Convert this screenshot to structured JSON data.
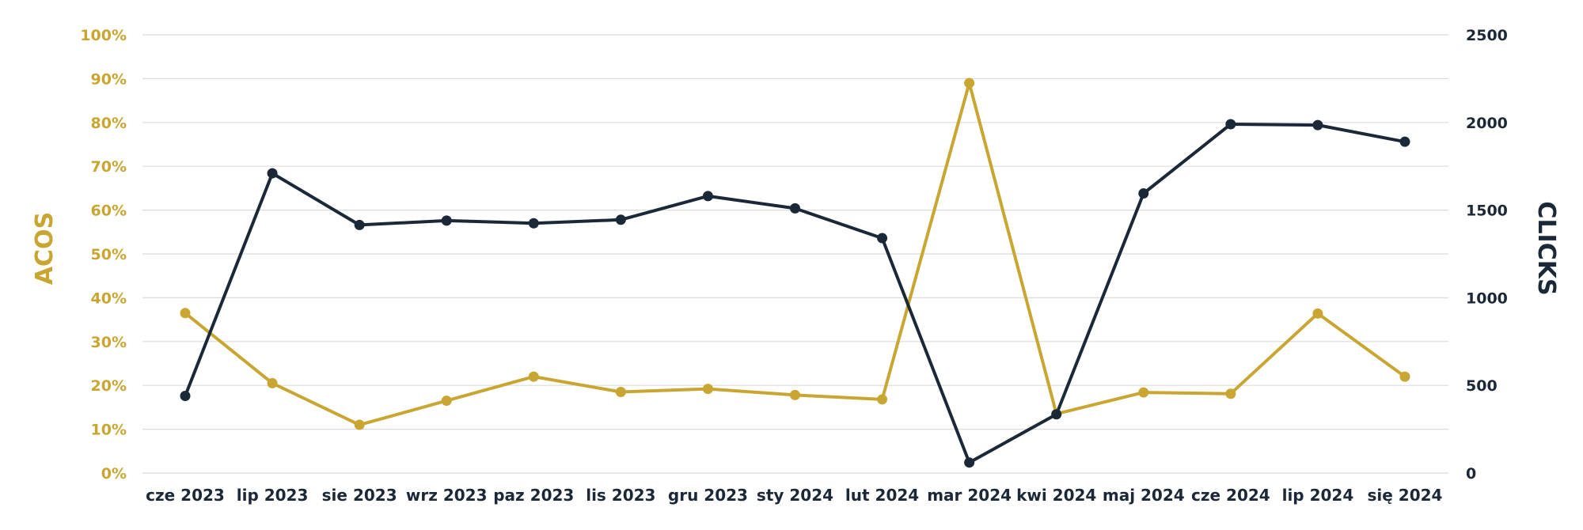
{
  "chart_data": {
    "type": "line",
    "categories": [
      "cze 2023",
      "lip 2023",
      "sie 2023",
      "wrz 2023",
      "paz 2023",
      "lis 2023",
      "gru 2023",
      "sty 2024",
      "lut 2024",
      "mar 2024",
      "kwi 2024",
      "maj 2024",
      "cze 2024",
      "lip 2024",
      "się 2024"
    ],
    "series": [
      {
        "name": "ACOS",
        "axis": "left",
        "color": "#c9a632",
        "values": [
          36.5,
          20.5,
          11,
          16.5,
          22,
          18.5,
          19.2,
          17.8,
          16.8,
          89,
          13.5,
          18.4,
          18.1,
          36.4,
          22
        ]
      },
      {
        "name": "CLICKS",
        "axis": "right",
        "color": "#1b2838",
        "values": [
          440,
          1710,
          1415,
          1440,
          1425,
          1445,
          1580,
          1510,
          1340,
          60,
          335,
          1595,
          1990,
          1985,
          1890
        ]
      }
    ],
    "ylabel_left": "ACOS",
    "ylabel_right": "CLICKS",
    "ylim_left": [
      0,
      100
    ],
    "ylim_right": [
      0,
      2500
    ],
    "yticks_left": [
      "0%",
      "10%",
      "20%",
      "30%",
      "40%",
      "50%",
      "60%",
      "70%",
      "80%",
      "90%",
      "100%"
    ],
    "yticks_right": [
      "0",
      "500",
      "1000",
      "1500",
      "2000",
      "2500"
    ],
    "grid": true,
    "legend": "none",
    "colors": {
      "left_axis": "#c9a632",
      "right_axis": "#1b2838",
      "grid": "#dcdcdc",
      "x_labels": "#1b2838"
    }
  }
}
